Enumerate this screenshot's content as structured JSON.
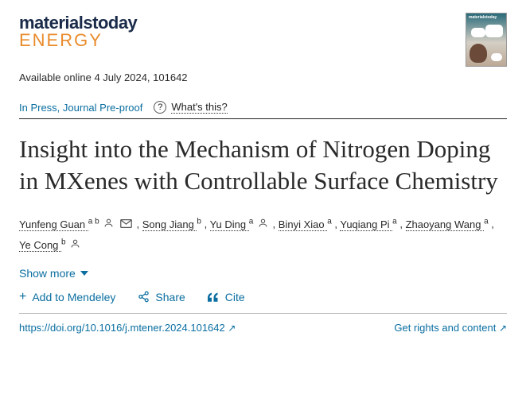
{
  "journal": {
    "name_line1": "materialstoday",
    "name_line2": "ENERGY"
  },
  "availability": "Available online 4 July 2024, 101642",
  "status": {
    "label": "In Press, Journal Pre-proof",
    "help_label": "What's this?"
  },
  "title": "Insight into the Mechanism of Nitrogen Doping in MXenes with Controllable Surface Chemistry",
  "authors": [
    {
      "name": "Yunfeng Guan",
      "affil": "a b",
      "person": true,
      "corresponding": true
    },
    {
      "name": "Song Jiang",
      "affil": "b",
      "person": false
    },
    {
      "name": "Yu Ding",
      "affil": "a",
      "person": true
    },
    {
      "name": "Binyi Xiao",
      "affil": "a",
      "person": false
    },
    {
      "name": "Yuqiang Pi",
      "affil": "a",
      "person": false
    },
    {
      "name": "Zhaoyang Wang",
      "affil": "a",
      "person": false
    },
    {
      "name": "Ye Cong",
      "affil": "b",
      "person": true
    }
  ],
  "show_more": "Show more",
  "actions": {
    "mendeley": "Add to Mendeley",
    "share": "Share",
    "cite": "Cite"
  },
  "doi": "https://doi.org/10.1016/j.mtener.2024.101642",
  "rights": "Get rights and content",
  "colors": {
    "brand_dark": "#1a2b4a",
    "brand_orange": "#e98b2c",
    "link": "#0a6ea0"
  }
}
